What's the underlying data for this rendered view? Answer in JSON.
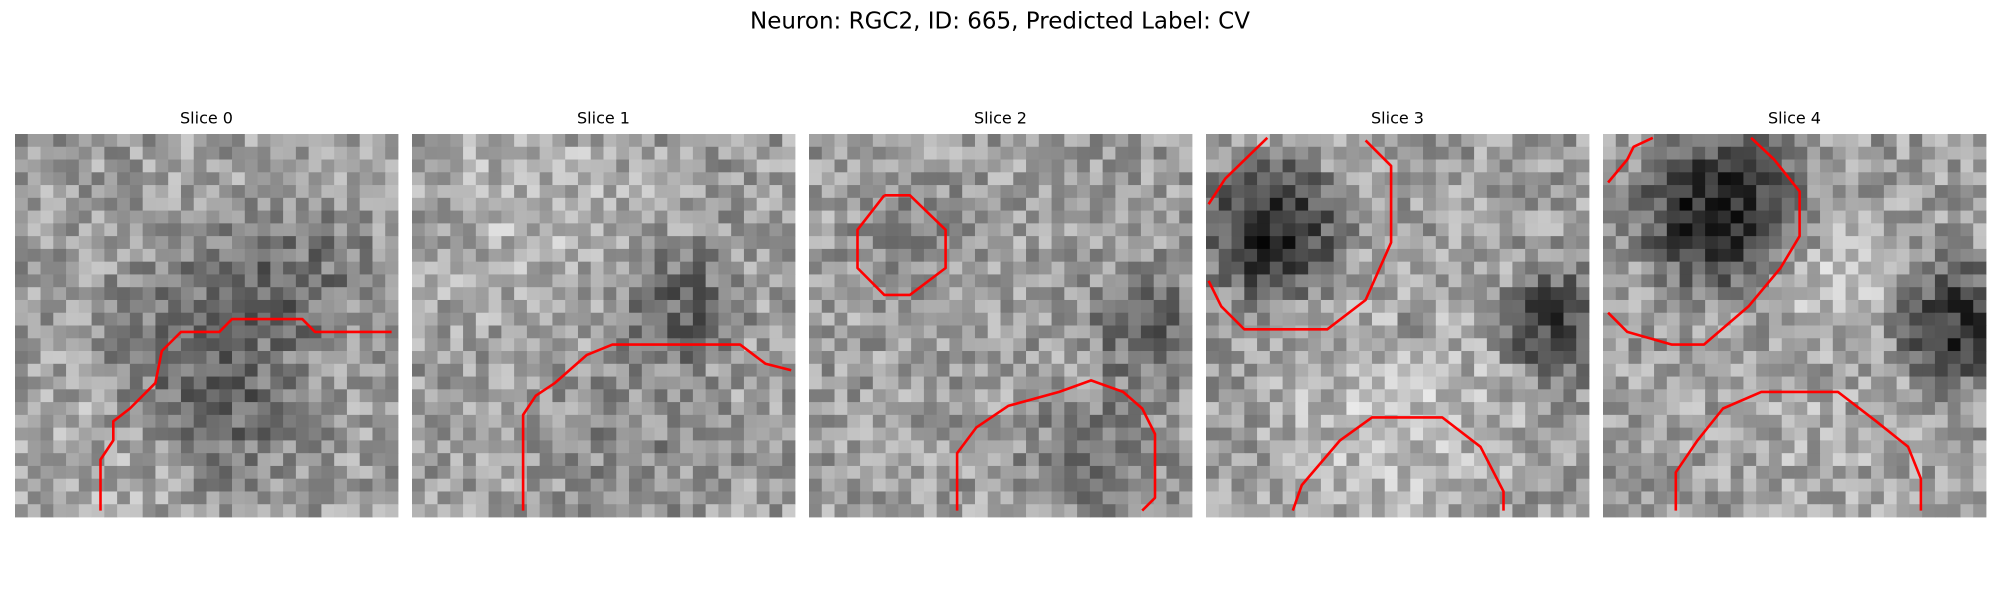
{
  "title": "Neuron: RGC2, ID: 665, Predicted Label: CV",
  "panels": [
    {
      "title": "Slice 0"
    },
    {
      "title": "Slice 1"
    },
    {
      "title": "Slice 2"
    },
    {
      "title": "Slice 3"
    },
    {
      "title": "Slice 4"
    }
  ]
}
